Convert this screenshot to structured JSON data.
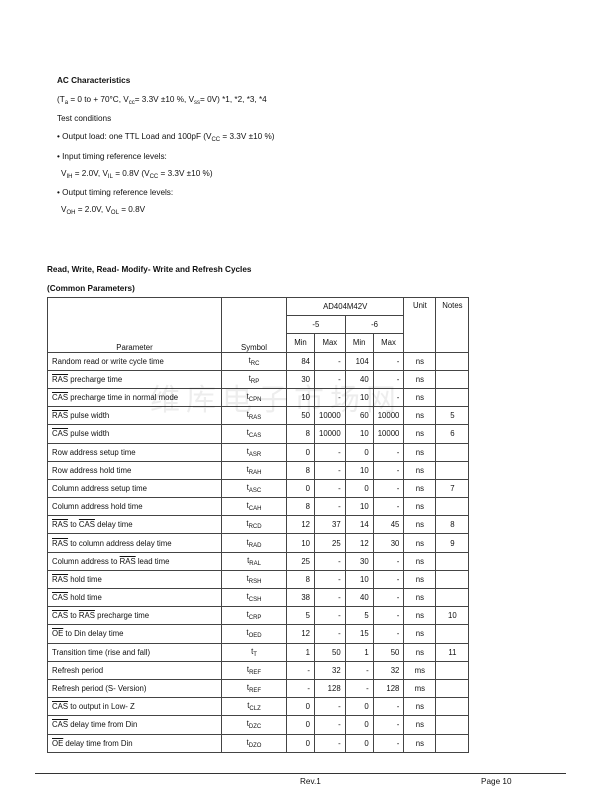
{
  "intro": {
    "title": "AC Characteristics",
    "conditions_line": [
      "(T",
      "a",
      " = 0 to + 70°C, V",
      "cc",
      "=  3.3V ±10 %,  V",
      "ss",
      "= 0V) *1, *2, *3, *4"
    ],
    "test_conditions": "Test conditions",
    "output_load": [
      "• Output load: one TTL Load and 100pF (V",
      "CC",
      " = 3.3V ±10 %)"
    ],
    "input_ref": "• Input timing reference levels:",
    "input_levels": [
      "V",
      "IH",
      " = 2.0V, V",
      "IL",
      " = 0.8V (V",
      "CC",
      " = 3.3V ±10 %)"
    ],
    "output_ref": "• Output timing reference levels:",
    "output_levels": [
      "V",
      "OH",
      " = 2.0V, V",
      "OL",
      " = 0.8V"
    ]
  },
  "section_title": "Read, Write, Read- Modify- Write and Refresh Cycles",
  "section_subtitle": "(Common Parameters)",
  "table": {
    "part": "AD404M42V",
    "grade_5": "-5",
    "grade_6": "-6",
    "headers": {
      "parameter": "Parameter",
      "symbol": "Symbol",
      "min": "Min",
      "max": "Max",
      "unit": "Unit",
      "notes": "Notes"
    },
    "rows": [
      {
        "param": [
          [
            "",
            "Random read or write cycle time"
          ]
        ],
        "sym": "RC",
        "v": [
          "84",
          "-",
          "104",
          "-"
        ],
        "unit": "ns",
        "note": ""
      },
      {
        "param": [
          [
            "RAS",
            " precharge time"
          ]
        ],
        "sym": "RP",
        "v": [
          "30",
          "-",
          "40",
          "-"
        ],
        "unit": "ns",
        "note": ""
      },
      {
        "param": [
          [
            "CAS",
            " precharge time in normal mode"
          ]
        ],
        "sym": "CPN",
        "v": [
          "10",
          "-",
          "10",
          "-"
        ],
        "unit": "ns",
        "note": ""
      },
      {
        "param": [
          [
            "RAS",
            "  pulse width"
          ]
        ],
        "sym": "RAS",
        "v": [
          "50",
          "10000",
          "60",
          "10000"
        ],
        "unit": "ns",
        "note": "5"
      },
      {
        "param": [
          [
            "CAS",
            " pulse width"
          ]
        ],
        "sym": "CAS",
        "v": [
          "8",
          "10000",
          "10",
          "10000"
        ],
        "unit": "ns",
        "note": "6"
      },
      {
        "param": [
          [
            "",
            "Row address setup time"
          ]
        ],
        "sym": "ASR",
        "v": [
          "0",
          "-",
          "0",
          "-"
        ],
        "unit": "ns",
        "note": ""
      },
      {
        "param": [
          [
            "",
            "Row address hold time"
          ]
        ],
        "sym": "RAH",
        "v": [
          "8",
          "-",
          "10",
          "-"
        ],
        "unit": "ns",
        "note": ""
      },
      {
        "param": [
          [
            "",
            "Column address setup time"
          ]
        ],
        "sym": "ASC",
        "v": [
          "0",
          "-",
          "0",
          "-"
        ],
        "unit": "ns",
        "note": "7"
      },
      {
        "param": [
          [
            "",
            "Column address hold time"
          ]
        ],
        "sym": "CAH",
        "v": [
          "8",
          "-",
          "10",
          "-"
        ],
        "unit": "ns",
        "note": ""
      },
      {
        "param": [
          [
            "RAS",
            " to "
          ],
          [
            "CAS",
            " delay time"
          ]
        ],
        "sym": "RCD",
        "v": [
          "12",
          "37",
          "14",
          "45"
        ],
        "unit": "ns",
        "note": "8"
      },
      {
        "param": [
          [
            "RAS",
            " to column address delay time"
          ]
        ],
        "sym": "RAD",
        "v": [
          "10",
          "25",
          "12",
          "30"
        ],
        "unit": "ns",
        "note": "9"
      },
      {
        "param": [
          [
            "",
            "Column address to "
          ],
          [
            "RAS",
            " lead time"
          ]
        ],
        "sym": "RAL",
        "v": [
          "25",
          "-",
          "30",
          "-"
        ],
        "unit": "ns",
        "note": ""
      },
      {
        "param": [
          [
            "RAS",
            " hold time"
          ]
        ],
        "sym": "RSH",
        "v": [
          "8",
          "-",
          "10",
          "-"
        ],
        "unit": "ns",
        "note": ""
      },
      {
        "param": [
          [
            "CAS",
            " hold time"
          ]
        ],
        "sym": "CSH",
        "v": [
          "38",
          "-",
          "40",
          "-"
        ],
        "unit": "ns",
        "note": ""
      },
      {
        "param": [
          [
            "CAS",
            " to "
          ],
          [
            "RAS",
            " precharge time"
          ]
        ],
        "sym": "CRP",
        "v": [
          "5",
          "-",
          "5",
          "-"
        ],
        "unit": "ns",
        "note": "10"
      },
      {
        "param": [
          [
            "OE",
            " to Din delay time"
          ]
        ],
        "sym": "OED",
        "v": [
          "12",
          "-",
          "15",
          "-"
        ],
        "unit": "ns",
        "note": ""
      },
      {
        "param": [
          [
            "",
            "Transition time (rise and fall)"
          ]
        ],
        "sym": "T",
        "v": [
          "1",
          "50",
          "1",
          "50"
        ],
        "unit": "ns",
        "note": "11"
      },
      {
        "param": [
          [
            "",
            "Refresh period"
          ]
        ],
        "sym": "REF",
        "v": [
          "-",
          "32",
          "-",
          "32"
        ],
        "unit": "ms",
        "note": ""
      },
      {
        "param": [
          [
            "",
            "Refresh period (S- Version)"
          ]
        ],
        "sym": "REF",
        "v": [
          "-",
          "128",
          "-",
          "128"
        ],
        "unit": "ms",
        "note": ""
      },
      {
        "param": [
          [
            "CAS",
            " to output in Low- Z"
          ]
        ],
        "sym": "CLZ",
        "v": [
          "0",
          "-",
          "0",
          "-"
        ],
        "unit": "ns",
        "note": ""
      },
      {
        "param": [
          [
            "CAS",
            " delay time from Din"
          ]
        ],
        "sym": "DZC",
        "v": [
          "0",
          "-",
          "0",
          "-"
        ],
        "unit": "ns",
        "note": ""
      },
      {
        "param": [
          [
            "OE",
            " delay time from Din"
          ]
        ],
        "sym": "DZO",
        "v": [
          "0",
          "-",
          "0",
          "-"
        ],
        "unit": "ns",
        "note": ""
      }
    ]
  },
  "watermark": "维库电子市场网",
  "footer": {
    "rev": "Rev.1",
    "page": "Page 10"
  }
}
